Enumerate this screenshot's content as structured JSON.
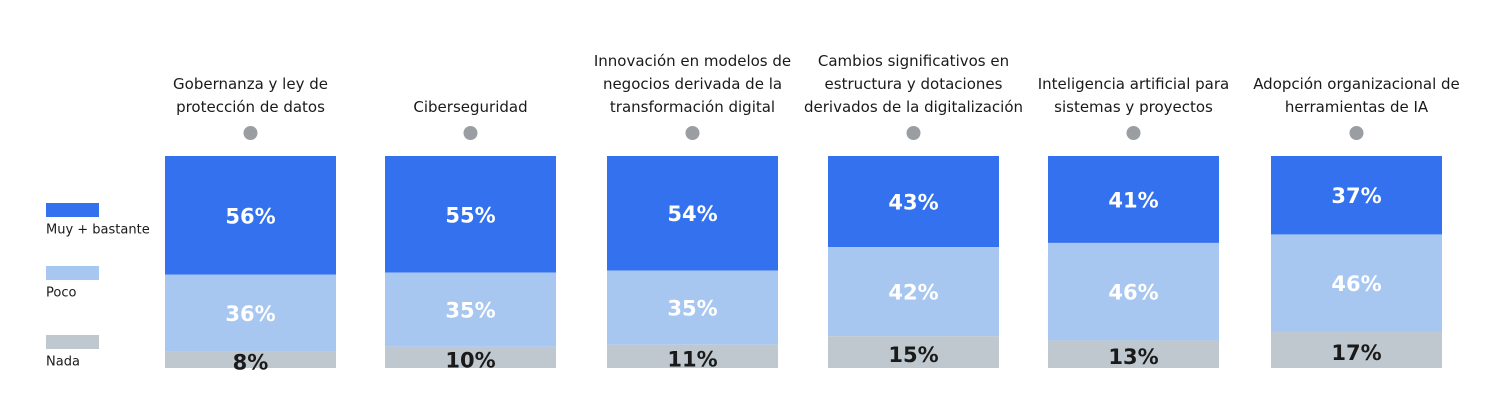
{
  "chart_data": {
    "type": "bar",
    "stacked": true,
    "categories": [
      "Gobernanza y ley de protección de datos",
      "Ciberseguridad",
      "Innovación en modelos de negocios derivada de la transformación digital",
      "Cambios significativos en estructura y dotaciones derivados de la digitalización",
      "Inteligencia artificial para sistemas y proyectos",
      "Adopción organizacional de herramientas de IA"
    ],
    "series": [
      {
        "name": "Muy + bastante",
        "color": "#3371ee",
        "values": [
          56,
          55,
          54,
          43,
          41,
          37
        ],
        "value_labels": [
          "56%",
          "55%",
          "54%",
          "43%",
          "41%",
          "37%"
        ]
      },
      {
        "name": "Poco",
        "color": "#a7c7f0",
        "values": [
          36,
          35,
          35,
          42,
          46,
          46
        ],
        "value_labels": [
          "36%",
          "35%",
          "35%",
          "42%",
          "46%",
          "46%"
        ]
      },
      {
        "name": "Nada",
        "color": "#bfc8cf",
        "values": [
          8,
          10,
          11,
          15,
          13,
          17
        ],
        "value_labels": [
          "8%",
          "10%",
          "11%",
          "15%",
          "13%",
          "17%"
        ]
      }
    ],
    "legend": "left"
  }
}
